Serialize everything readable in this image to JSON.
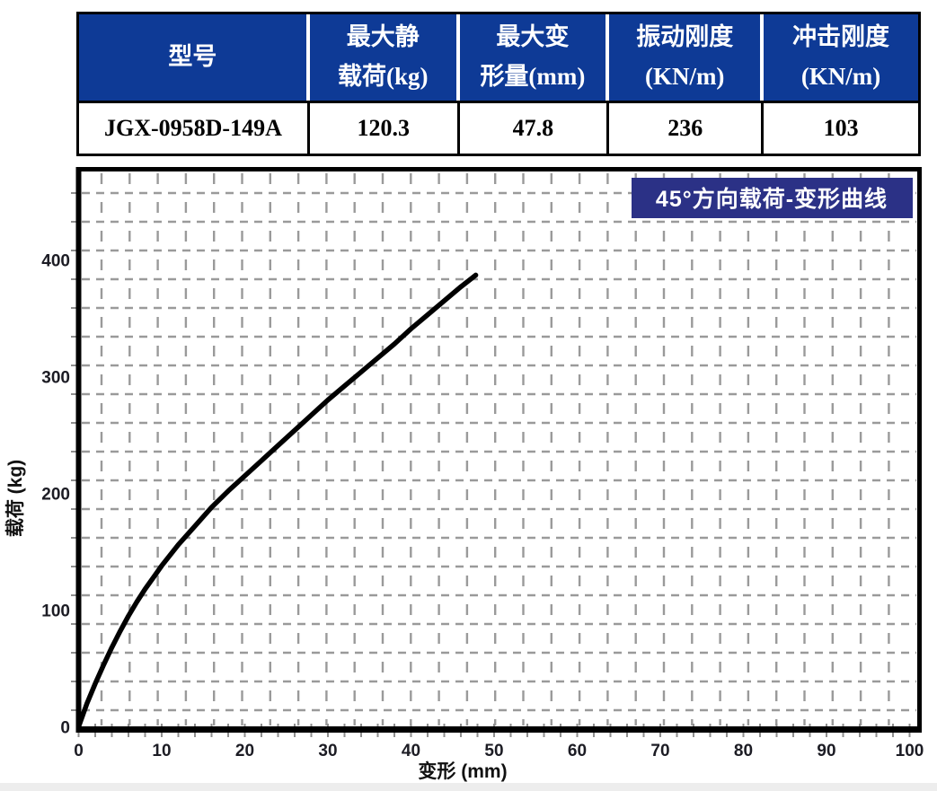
{
  "table": {
    "columns": [
      {
        "label": "型号"
      },
      {
        "label": "最大静\n载荷(kg)"
      },
      {
        "label": "最大变\n形量(mm)"
      },
      {
        "label": "振动刚度\n(KN/m)"
      },
      {
        "label": "冲击刚度\n(KN/m)"
      }
    ],
    "row": {
      "model": "JGX-0958D-149A",
      "max_static_load_kg": "120.3",
      "max_deformation_mm": "47.8",
      "vibration_stiffness_kn_m": "236",
      "impact_stiffness_kn_m": "103"
    }
  },
  "chart_data": {
    "type": "line",
    "title": "45°方向载荷-变形曲线",
    "xlabel": "变形 (mm)",
    "ylabel": "载荷 (kg)",
    "xlim": [
      0,
      100
    ],
    "ylim": [
      0,
      480
    ],
    "xticks": [
      "0",
      "10",
      "20",
      "30",
      "40",
      "50",
      "60",
      "70",
      "80",
      "90",
      "100"
    ],
    "yticks": [
      "0",
      "100",
      "200",
      "300",
      "400"
    ],
    "grid": "dashed",
    "legend": "none",
    "series": [
      {
        "name": "45°方向载荷-变形曲线",
        "points": [
          [
            0,
            0
          ],
          [
            1,
            20
          ],
          [
            2,
            37
          ],
          [
            3,
            53
          ],
          [
            4,
            68
          ],
          [
            5,
            82
          ],
          [
            6,
            95
          ],
          [
            7,
            107
          ],
          [
            8,
            118
          ],
          [
            9,
            128
          ],
          [
            10,
            138
          ],
          [
            12,
            156
          ],
          [
            14,
            172
          ],
          [
            16,
            188
          ],
          [
            18,
            202
          ],
          [
            20,
            215
          ],
          [
            22,
            228
          ],
          [
            24,
            241
          ],
          [
            26,
            254
          ],
          [
            28,
            267
          ],
          [
            30,
            280
          ],
          [
            32,
            292
          ],
          [
            34,
            304
          ],
          [
            36,
            316
          ],
          [
            38,
            328
          ],
          [
            40,
            341
          ],
          [
            42,
            353
          ],
          [
            44,
            365
          ],
          [
            46,
            377
          ],
          [
            47.8,
            387
          ]
        ]
      }
    ],
    "colors": {
      "curve": "#000000",
      "grid": "#9a9a9a",
      "axis": "#000000",
      "title_bg": "#2b3186",
      "title_text": "#ffffff",
      "header_bg": "#0e3a96",
      "header_text": "#ffffff"
    }
  }
}
